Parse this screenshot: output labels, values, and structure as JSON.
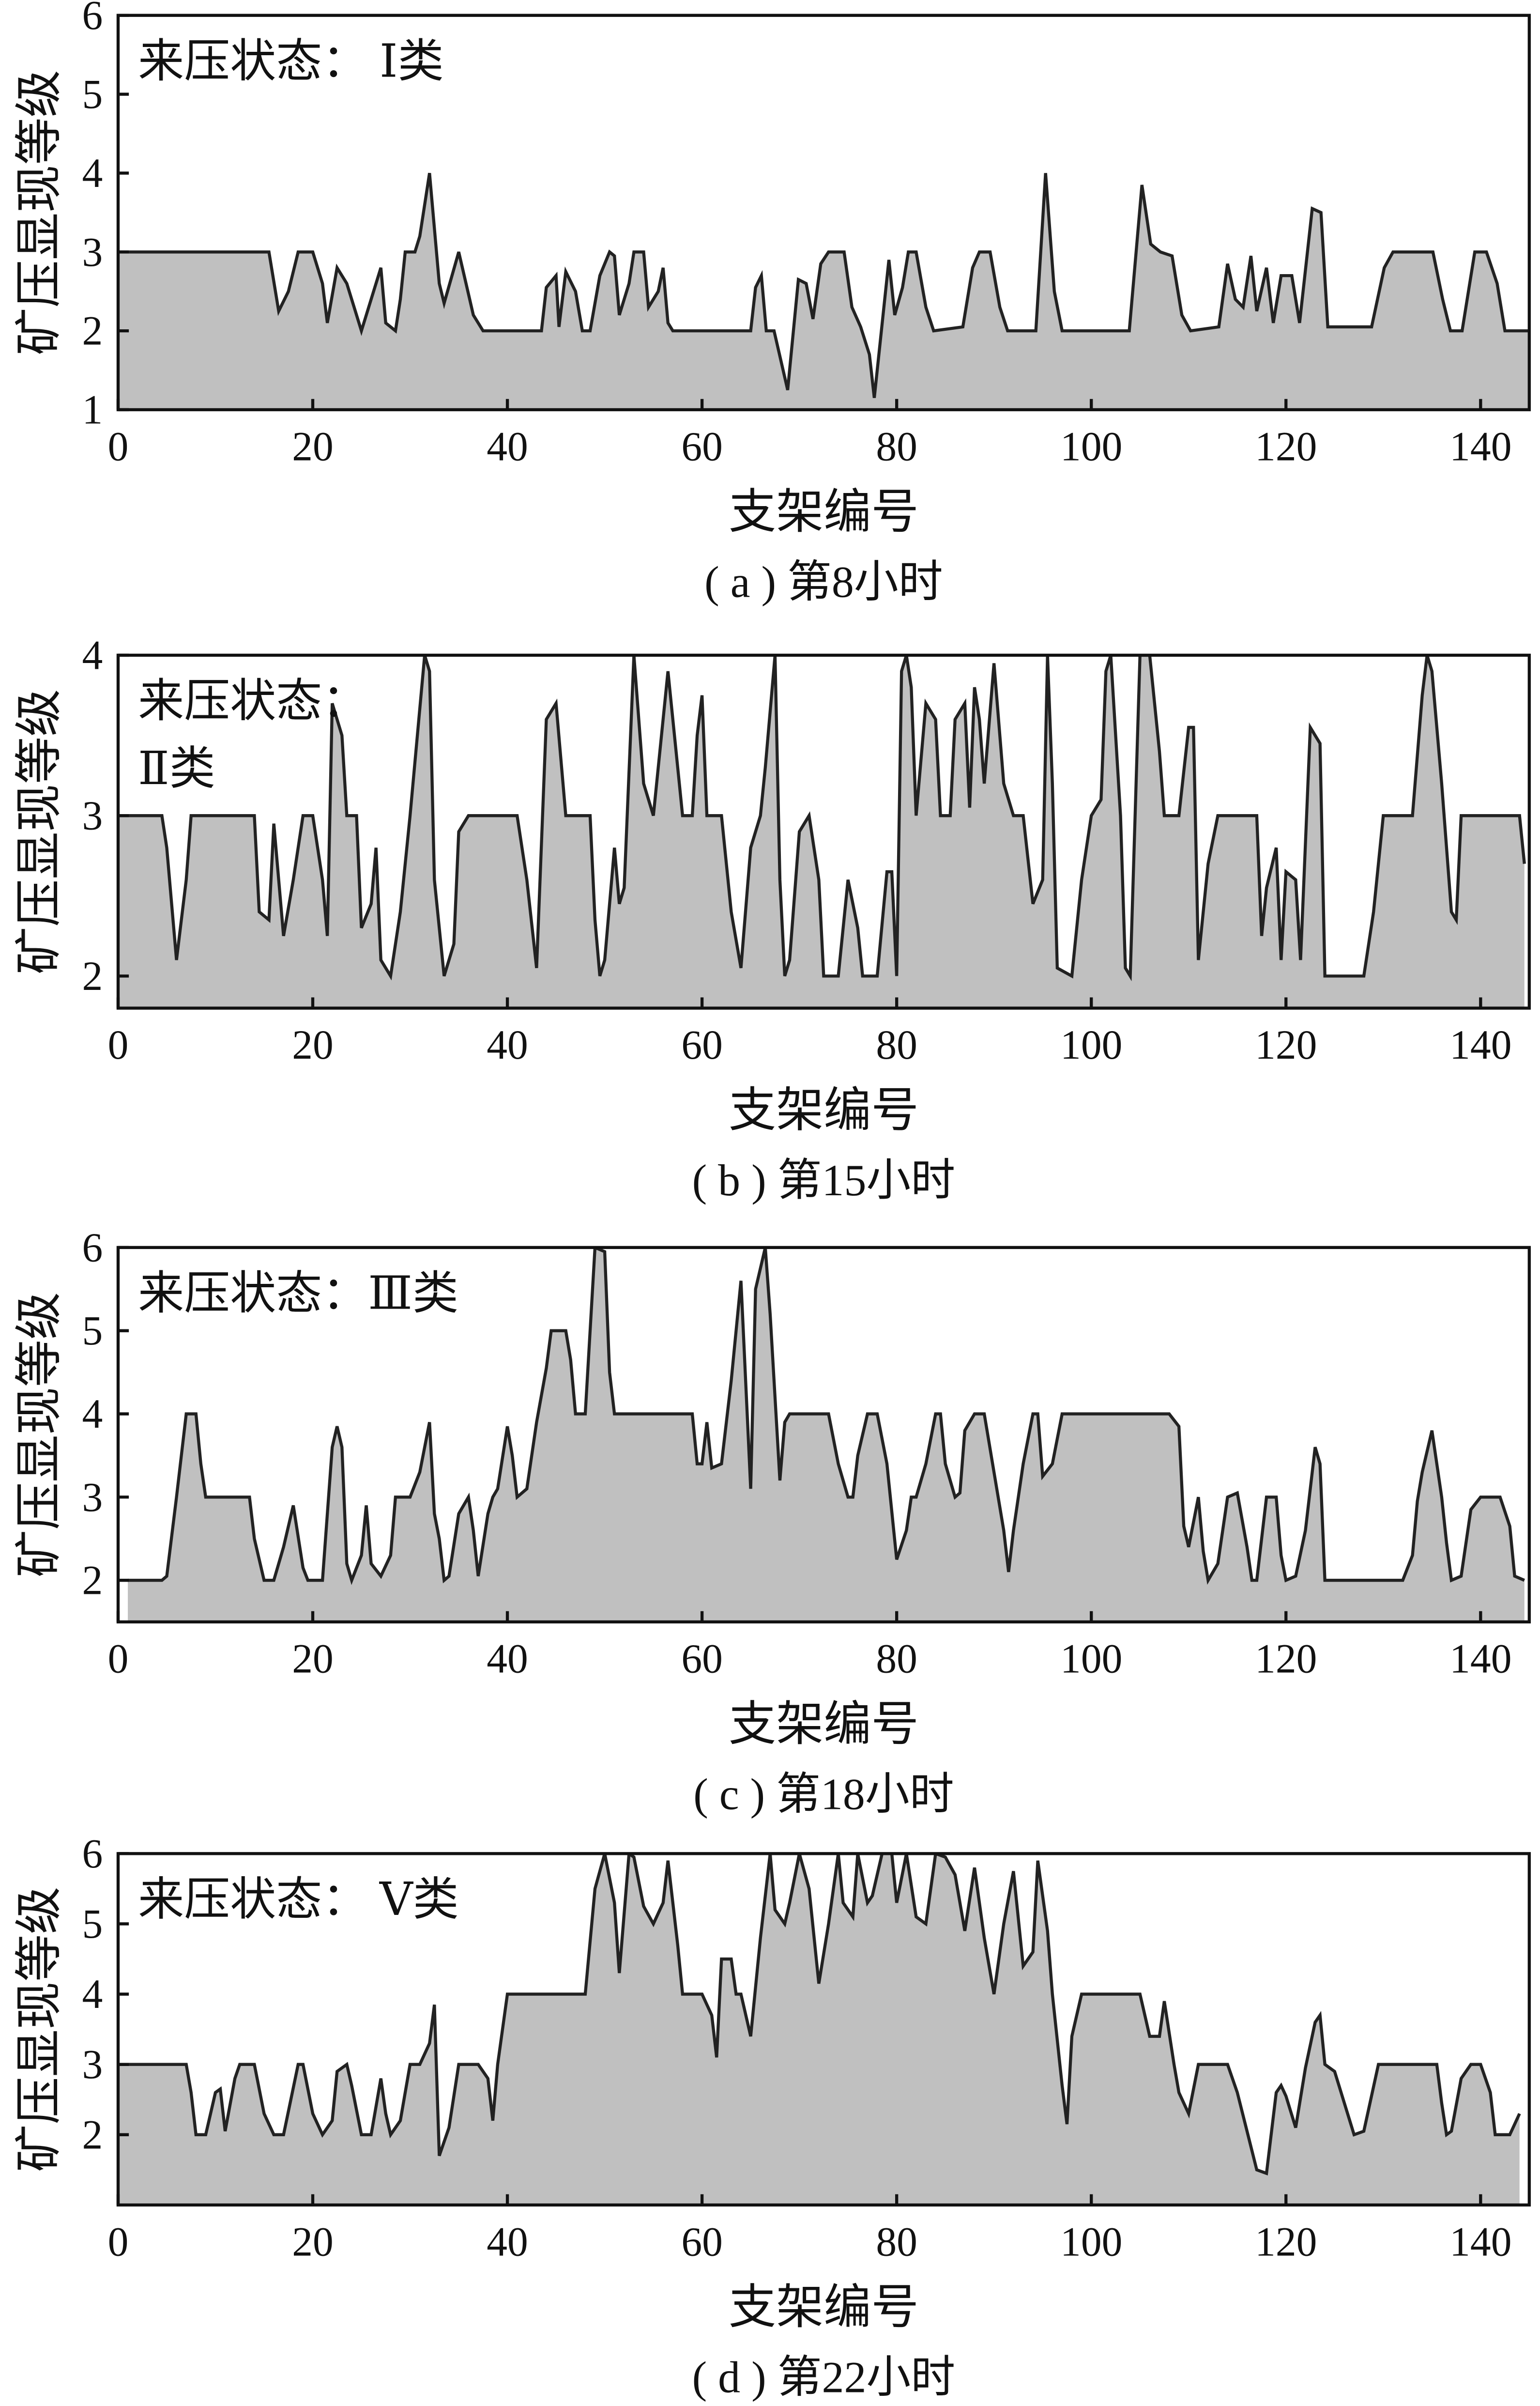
{
  "chart_data": [
    {
      "type": "area",
      "annotation": [
        "来压状态： Ⅰ类"
      ],
      "caption": "( a ) 第8小时",
      "xlabel": "支架编号",
      "ylabel": "矿压显现等级",
      "color": "#c0c0c0",
      "line_color": "#222222",
      "xlim": [
        0,
        145
      ],
      "xticks": [
        0,
        20,
        40,
        60,
        80,
        100,
        120,
        140
      ],
      "ylim": [
        1,
        6
      ],
      "yticks": [
        1,
        2,
        3,
        4,
        5,
        6
      ],
      "x": [
        0,
        15.5,
        16.5,
        17.5,
        18.5,
        20,
        21,
        21.5,
        22.5,
        23.5,
        24.5,
        25,
        26,
        27,
        27.5,
        28.5,
        29,
        29.5,
        30.5,
        31,
        32,
        33,
        33.5,
        35,
        36.5,
        37.5,
        43.5,
        44,
        45,
        45.3,
        46,
        47,
        47.7,
        48.5,
        49.5,
        50.5,
        51,
        51.5,
        52.5,
        53,
        54,
        54.5,
        55.5,
        56,
        56.5,
        57,
        65,
        65.5,
        66.1,
        66.6,
        67.4,
        68.8,
        69.9,
        70.7,
        71.4,
        72.2,
        73,
        74.6,
        75.4,
        76.3,
        77.2,
        77.7,
        79.2,
        79.8,
        80.6,
        81.2,
        82,
        83,
        83.8,
        86.8,
        87.8,
        88.5,
        89.6,
        90.6,
        91.4,
        94.3,
        95.3,
        96.2,
        97,
        103.9,
        105.2,
        106.1,
        107.1,
        108.3,
        109.3,
        110.2,
        113.1,
        114,
        114.8,
        115.6,
        116.4,
        117,
        118,
        118.7,
        119.5,
        120.6,
        121.4,
        122.7,
        123.6,
        124.3,
        128.8,
        130.1,
        131,
        135.1,
        136.1,
        136.9,
        138.1,
        139.4,
        140.6,
        141.7,
        142.5,
        145
      ],
      "values": [
        3,
        3,
        2.25,
        2.5,
        3,
        3,
        2.6,
        2.1,
        2.8,
        2.6,
        2.2,
        2,
        2.4,
        2.8,
        2.1,
        2,
        2.4,
        3,
        3,
        3.2,
        4,
        2.6,
        2.35,
        3,
        2.2,
        2,
        2,
        2.55,
        2.7,
        2.05,
        2.75,
        2.5,
        2,
        2,
        2.7,
        3,
        2.95,
        2.2,
        2.6,
        3,
        3,
        2.3,
        2.5,
        2.8,
        2.1,
        2,
        2,
        2.55,
        2.7,
        2,
        2,
        1.25,
        2.65,
        2.6,
        2.15,
        2.85,
        3,
        3,
        2.3,
        2.05,
        1.7,
        1.15,
        2.9,
        2.2,
        2.55,
        3,
        3,
        2.3,
        2,
        2.05,
        2.8,
        3,
        3,
        2.3,
        2,
        2,
        4,
        2.5,
        2,
        2,
        3.85,
        3.1,
        3,
        2.95,
        2.2,
        2,
        2.05,
        2.85,
        2.4,
        2.3,
        2.95,
        2.25,
        2.8,
        2.1,
        2.7,
        2.7,
        2.1,
        3.55,
        3.5,
        2.05,
        2.05,
        2.8,
        3,
        3,
        2.4,
        2,
        2,
        3,
        3,
        2.6,
        2,
        2
      ]
    },
    {
      "type": "area",
      "annotation": [
        "来压状态：",
        "Ⅱ类"
      ],
      "caption": "( b ) 第15小时",
      "xlabel": "支架编号",
      "ylabel": "矿压显现等级",
      "color": "#c0c0c0",
      "line_color": "#222222",
      "xlim": [
        0,
        145
      ],
      "xticks": [
        0,
        20,
        40,
        60,
        80,
        100,
        120,
        140
      ],
      "ylim": [
        1.8,
        4
      ],
      "yticks": [
        2,
        3,
        4
      ],
      "x": [
        0,
        4.5,
        5,
        6,
        7,
        7.5,
        14,
        14.5,
        15.5,
        16,
        17,
        18,
        19,
        20,
        21,
        21.5,
        22,
        23,
        23.5,
        24.5,
        25,
        26,
        26.5,
        27,
        28,
        29,
        30,
        31.5,
        32,
        32.5,
        33.5,
        34.5,
        35,
        36,
        41,
        42,
        43,
        44,
        45,
        46,
        48.5,
        49,
        49.5,
        50,
        51,
        51.5,
        52,
        53,
        54,
        55,
        56.5,
        57.5,
        58,
        59,
        59.5,
        60,
        60.5,
        62,
        63,
        64,
        65,
        66,
        66.5,
        67.5,
        68,
        68.5,
        69,
        70,
        71,
        72,
        72.5,
        74,
        75,
        76,
        76.5,
        78,
        79,
        79.5,
        80,
        80.5,
        81,
        81.5,
        82,
        83,
        84,
        84.5,
        85.5,
        86,
        87,
        87.5,
        88,
        88.5,
        89,
        90,
        91,
        92,
        93,
        94,
        95,
        95.5,
        96,
        96.5,
        98,
        99,
        100,
        101,
        101.5,
        102,
        103,
        103.5,
        104,
        105,
        106,
        107,
        107.5,
        109,
        110,
        110.5,
        111,
        112,
        113,
        117,
        117.5,
        118,
        119,
        119.5,
        120,
        121,
        121.5,
        122.5,
        123.5,
        124,
        128,
        129,
        130,
        133,
        134,
        134.5,
        135,
        136,
        137,
        137.5,
        138,
        144,
        144.5
      ],
      "values": [
        3,
        3,
        2.8,
        2.1,
        2.6,
        3,
        3,
        2.4,
        2.35,
        2.95,
        2.25,
        2.6,
        3,
        3,
        2.6,
        2.25,
        3.7,
        3.5,
        3,
        3,
        2.3,
        2.45,
        2.8,
        2.1,
        2,
        2.4,
        3,
        4,
        3.9,
        2.6,
        2,
        2.2,
        2.9,
        3,
        3,
        2.6,
        2.05,
        3.6,
        3.7,
        3,
        3,
        2.35,
        2,
        2.1,
        2.8,
        2.45,
        2.55,
        4,
        3.2,
        3,
        3.9,
        3.3,
        3,
        3,
        3.5,
        3.75,
        3,
        3,
        2.4,
        2.05,
        2.8,
        3,
        3.3,
        4,
        2.6,
        2,
        2.1,
        2.9,
        3,
        2.6,
        2,
        2,
        2.6,
        2.3,
        2,
        2,
        2.65,
        2.65,
        2,
        3.9,
        4,
        3.8,
        3,
        3.7,
        3.6,
        3,
        3,
        3.6,
        3.7,
        3.05,
        3.8,
        3.6,
        3.2,
        3.95,
        3.2,
        3,
        3,
        2.45,
        2.6,
        4,
        3.2,
        2.05,
        2,
        2.6,
        3,
        3.1,
        3.9,
        4,
        3,
        2.05,
        2,
        4,
        4,
        3.4,
        3,
        3,
        3.55,
        3.55,
        2.1,
        2.7,
        3,
        3,
        2.25,
        2.55,
        2.8,
        2.1,
        2.65,
        2.6,
        2.1,
        3.55,
        3.45,
        2,
        2,
        2.4,
        3,
        3,
        3.75,
        4,
        3.9,
        3.2,
        2.4,
        2.35,
        3,
        3,
        2.7
      ]
    },
    {
      "type": "area",
      "annotation": [
        "来压状态：Ⅲ类"
      ],
      "caption": "( c ) 第18小时",
      "xlabel": "支架编号",
      "ylabel": "矿压显现等级",
      "color": "#c0c0c0",
      "line_color": "#222222",
      "xlim": [
        0,
        145
      ],
      "xticks": [
        0,
        20,
        40,
        60,
        80,
        100,
        120,
        140
      ],
      "ylim": [
        1.5,
        6
      ],
      "yticks": [
        2,
        3,
        4,
        5,
        6
      ],
      "x": [
        1,
        4.5,
        5,
        6,
        6.5,
        7,
        8,
        8.5,
        9,
        13.5,
        14,
        15,
        16,
        17,
        18,
        19,
        19.5,
        21,
        22,
        22.5,
        23,
        23.5,
        24,
        25,
        25.5,
        26,
        27,
        28,
        28.5,
        30,
        31,
        32,
        32.5,
        33,
        33.5,
        34,
        35,
        36,
        36.5,
        37,
        38,
        38.5,
        39,
        40,
        40.5,
        41,
        42,
        43,
        44,
        44.5,
        46,
        46.5,
        47,
        48,
        49,
        50,
        50.5,
        51,
        59,
        59.5,
        60,
        60.5,
        61,
        62,
        63,
        64,
        65,
        65.5,
        66.5,
        67,
        68,
        68.5,
        69,
        73,
        74,
        75,
        75.5,
        76,
        77,
        78,
        79,
        80,
        81,
        81.5,
        82,
        83,
        84,
        84.5,
        85,
        86,
        86.5,
        87,
        88,
        89,
        90,
        91,
        91.5,
        92,
        93,
        94,
        94.5,
        95,
        96,
        97,
        108,
        109,
        109.5,
        110,
        111,
        111.5,
        112,
        113,
        114,
        115,
        116,
        116.5,
        117,
        118,
        119,
        119.5,
        120,
        121,
        122,
        123,
        123.5,
        124,
        132,
        133,
        133.5,
        134,
        135,
        136,
        136.5,
        137,
        138,
        139,
        140,
        142,
        143,
        143.5,
        144.5
      ],
      "values": [
        2,
        2,
        2.05,
        3,
        3.5,
        4,
        4,
        3.4,
        3,
        3,
        2.5,
        2,
        2,
        2.4,
        2.9,
        2.15,
        2,
        2,
        3.6,
        3.85,
        3.6,
        2.2,
        2,
        2.3,
        2.9,
        2.2,
        2.05,
        2.3,
        3,
        3,
        3.3,
        3.9,
        2.8,
        2.5,
        2,
        2.05,
        2.8,
        3,
        2.6,
        2.05,
        2.8,
        3,
        3.1,
        3.85,
        3.5,
        3,
        3.1,
        3.9,
        4.55,
        5,
        5,
        4.65,
        4,
        4,
        6,
        5.95,
        4.5,
        4,
        4,
        3.4,
        3.4,
        3.9,
        3.35,
        3.4,
        4.4,
        5.6,
        3.1,
        5.5,
        6,
        5.2,
        3.2,
        3.9,
        4,
        4,
        3.4,
        3,
        3,
        3.5,
        4,
        4,
        3.4,
        2.25,
        2.6,
        3,
        3,
        3.4,
        4,
        4,
        3.4,
        3,
        3.05,
        3.8,
        4,
        4,
        3.3,
        2.6,
        2.1,
        2.6,
        3.4,
        4,
        4,
        3.25,
        3.4,
        4,
        4,
        3.85,
        2.65,
        2.4,
        3,
        2.35,
        2,
        2.2,
        3,
        3.05,
        2.4,
        2,
        2,
        3,
        3,
        2.3,
        2,
        2.05,
        2.6,
        3.6,
        3.4,
        2,
        2,
        2.3,
        2.95,
        3.3,
        3.8,
        3,
        2.45,
        2,
        2.05,
        2.85,
        3,
        3,
        2.65,
        2.05,
        2
      ]
    },
    {
      "type": "area",
      "annotation": [
        "来压状态： Ⅴ类"
      ],
      "caption": "( d ) 第22小时",
      "xlabel": "支架编号",
      "ylabel": "矿压显现等级",
      "color": "#c0c0c0",
      "line_color": "#222222",
      "xlim": [
        0,
        145
      ],
      "xticks": [
        0,
        20,
        40,
        60,
        80,
        100,
        120,
        140
      ],
      "ylim": [
        1,
        6
      ],
      "yticks": [
        2,
        3,
        4,
        5,
        6
      ],
      "x": [
        0,
        7,
        7.5,
        8,
        9,
        10,
        10.5,
        11,
        12,
        12.5,
        14,
        15,
        16,
        17,
        18.5,
        19,
        20,
        21,
        22,
        22.5,
        23.5,
        24,
        25,
        26,
        27,
        27.5,
        28,
        29,
        30,
        31,
        32,
        32.5,
        33,
        34,
        35,
        37,
        38,
        38.5,
        39,
        40,
        48,
        49,
        50,
        51,
        51.5,
        52.5,
        53,
        54,
        55,
        56,
        56.5,
        57.5,
        58,
        60,
        61,
        61.5,
        62,
        63,
        63.5,
        64,
        65,
        66,
        67,
        67.5,
        68.5,
        69,
        70,
        71,
        72,
        73,
        74,
        74.5,
        75.5,
        76,
        77,
        77.5,
        78.5,
        79.5,
        80,
        81,
        82,
        83,
        84,
        85,
        86,
        87,
        88,
        89,
        90,
        91,
        92,
        93,
        94,
        94.5,
        95.5,
        96,
        97,
        97.5,
        98,
        99,
        105,
        106,
        107,
        107.5,
        108.5,
        109,
        110,
        111,
        114,
        115,
        116,
        117,
        118,
        119,
        119.5,
        120,
        121,
        122,
        123,
        123.5,
        124,
        125,
        126,
        127,
        128,
        129.5,
        135.5,
        136,
        136.5,
        137,
        138,
        139,
        140,
        141,
        141.5,
        143,
        144
      ],
      "values": [
        3,
        3,
        2.6,
        2,
        2,
        2.6,
        2.65,
        2.05,
        2.8,
        3,
        3,
        2.3,
        2,
        2,
        3,
        3,
        2.3,
        2,
        2.2,
        2.9,
        3,
        2.7,
        2,
        2,
        2.8,
        2.3,
        2,
        2.2,
        3,
        3,
        3.3,
        3.85,
        1.7,
        2.1,
        3,
        3,
        2.8,
        2.2,
        3,
        4,
        4,
        5.5,
        6,
        5.3,
        4.3,
        6,
        5.95,
        5.25,
        5,
        5.3,
        5.9,
        4.7,
        4,
        4,
        3.7,
        3.1,
        4.5,
        4.5,
        4,
        4,
        3.4,
        4.8,
        6,
        5.2,
        5,
        5.3,
        6,
        5.5,
        4.15,
        5,
        6,
        5.3,
        5.1,
        6,
        5.3,
        5.4,
        6,
        6,
        5.3,
        6,
        5.1,
        5,
        6,
        5.95,
        5.7,
        4.9,
        5.8,
        4.8,
        4,
        5,
        5.75,
        4.4,
        4.6,
        5.9,
        4.9,
        4,
        2.7,
        2.15,
        3.4,
        4,
        4,
        3.4,
        3.4,
        3.9,
        3,
        2.6,
        2.3,
        3,
        3,
        2.6,
        2.05,
        1.5,
        1.45,
        2.6,
        2.7,
        2.55,
        2.1,
        2.95,
        3.6,
        3.7,
        3,
        2.9,
        2.45,
        2,
        2.05,
        3,
        3,
        2.45,
        2,
        2.05,
        2.8,
        3,
        3,
        2.6,
        2,
        2,
        2.3
      ]
    }
  ]
}
